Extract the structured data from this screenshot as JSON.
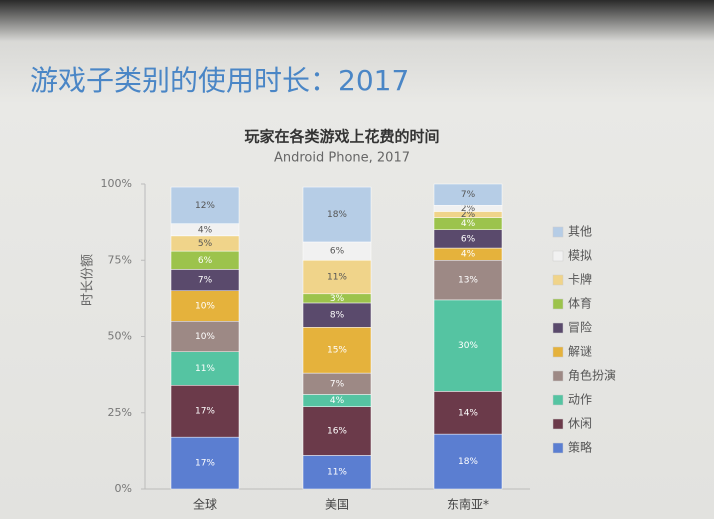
{
  "heading": "游戏子类别的使用时长：2017",
  "chart_data": {
    "type": "stacked_bar",
    "title": "玩家在各类游戏上花费的时间",
    "subtitle": "Android Phone, 2017",
    "y_label": "时长份额",
    "categories": [
      "全球",
      "美国",
      "东南亚*"
    ],
    "ylim": [
      0,
      100
    ],
    "yticks": [
      {
        "value": 0,
        "label": "0%"
      },
      {
        "value": 25,
        "label": "25%"
      },
      {
        "value": 50,
        "label": "50%"
      },
      {
        "value": 75,
        "label": "75%"
      },
      {
        "value": 100,
        "label": "100%"
      }
    ],
    "legend": "right",
    "series": [
      {
        "name": "策略",
        "color": "#5b7ed1",
        "values": [
          17,
          11,
          18
        ],
        "value_labels": [
          "17%",
          "11%",
          "18%"
        ]
      },
      {
        "name": "休闲",
        "color": "#6b3a4a",
        "values": [
          17,
          16,
          14
        ],
        "value_labels": [
          "17%",
          "16%",
          "14%"
        ]
      },
      {
        "name": "动作",
        "color": "#55c4a2",
        "values": [
          11,
          4,
          30
        ],
        "value_labels": [
          "11%",
          "4%",
          "30%"
        ]
      },
      {
        "name": "角色扮演",
        "color": "#9d8985",
        "values": [
          10,
          7,
          13
        ],
        "value_labels": [
          "10%",
          "7%",
          "13%"
        ]
      },
      {
        "name": "解谜",
        "color": "#e5b23c",
        "values": [
          10,
          15,
          4
        ],
        "value_labels": [
          "10%",
          "15%",
          "4%"
        ]
      },
      {
        "name": "冒险",
        "color": "#5a4a6c",
        "values": [
          7,
          8,
          6
        ],
        "value_labels": [
          "7%",
          "8%",
          "6%"
        ]
      },
      {
        "name": "体育",
        "color": "#9cc34c",
        "values": [
          6,
          3,
          4
        ],
        "value_labels": [
          "6%",
          "3%",
          "4%"
        ]
      },
      {
        "name": "卡牌",
        "color": "#f0d48a",
        "values": [
          5,
          11,
          2
        ],
        "value_labels": [
          "5%",
          "11%",
          "2%"
        ]
      },
      {
        "name": "模拟",
        "color": "#f1f1f1",
        "values": [
          4,
          6,
          2
        ],
        "value_labels": [
          "4%",
          "6%",
          "2%"
        ]
      },
      {
        "name": "其他",
        "color": "#b6cde6",
        "values": [
          12,
          18,
          7
        ],
        "value_labels": [
          "12%",
          "18%",
          "7%"
        ]
      }
    ]
  }
}
